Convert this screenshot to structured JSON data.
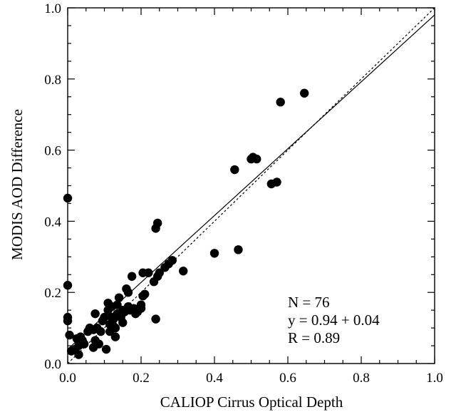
{
  "chart_data": {
    "type": "scatter",
    "title": "",
    "xlabel": "CALIOP Cirrus Optical Depth",
    "ylabel": "MODIS AOD Difference",
    "xlim": [
      0.0,
      1.0
    ],
    "ylim": [
      0.0,
      1.0
    ],
    "xticks": [
      "0.0",
      "0.2",
      "0.4",
      "0.6",
      "0.8",
      "1.0"
    ],
    "yticks": [
      "0.0",
      "0.2",
      "0.4",
      "0.6",
      "0.8",
      "1.0"
    ],
    "grid": false,
    "legend": "none",
    "marker_color": "#000000",
    "annotations": {
      "n": "N = 76",
      "fit": "y = 0.94 + 0.04",
      "r": "R = 0.89"
    },
    "lines": [
      {
        "kind": "regression",
        "style": "solid",
        "x": [
          0.0,
          1.0
        ],
        "y": [
          0.04,
          0.98
        ]
      },
      {
        "kind": "one-to-one",
        "style": "dotted",
        "x": [
          0.0,
          1.0
        ],
        "y": [
          0.0,
          1.0
        ]
      }
    ],
    "points": [
      [
        0.0,
        0.465
      ],
      [
        0.0,
        0.22
      ],
      [
        0.0,
        0.13
      ],
      [
        0.0,
        0.12
      ],
      [
        0.005,
        0.08
      ],
      [
        0.01,
        0.035
      ],
      [
        0.02,
        0.04
      ],
      [
        0.025,
        0.07
      ],
      [
        0.03,
        0.05
      ],
      [
        0.03,
        0.025
      ],
      [
        0.035,
        0.075
      ],
      [
        0.04,
        0.065
      ],
      [
        0.045,
        0.055
      ],
      [
        0.06,
        0.1
      ],
      [
        0.07,
        0.095
      ],
      [
        0.07,
        0.045
      ],
      [
        0.075,
        0.14
      ],
      [
        0.075,
        0.065
      ],
      [
        0.08,
        0.1
      ],
      [
        0.09,
        0.09
      ],
      [
        0.1,
        0.13
      ],
      [
        0.105,
        0.04
      ],
      [
        0.11,
        0.17
      ],
      [
        0.11,
        0.15
      ],
      [
        0.115,
        0.09
      ],
      [
        0.12,
        0.16
      ],
      [
        0.12,
        0.13
      ],
      [
        0.125,
        0.125
      ],
      [
        0.13,
        0.1
      ],
      [
        0.13,
        0.075
      ],
      [
        0.135,
        0.14
      ],
      [
        0.14,
        0.185
      ],
      [
        0.145,
        0.13
      ],
      [
        0.15,
        0.15
      ],
      [
        0.155,
        0.145
      ],
      [
        0.16,
        0.21
      ],
      [
        0.165,
        0.2
      ],
      [
        0.165,
        0.16
      ],
      [
        0.17,
        0.15
      ],
      [
        0.175,
        0.245
      ],
      [
        0.18,
        0.155
      ],
      [
        0.185,
        0.14
      ],
      [
        0.19,
        0.145
      ],
      [
        0.2,
        0.165
      ],
      [
        0.2,
        0.155
      ],
      [
        0.205,
        0.19
      ],
      [
        0.21,
        0.195
      ],
      [
        0.205,
        0.255
      ],
      [
        0.22,
        0.255
      ],
      [
        0.24,
        0.38
      ],
      [
        0.245,
        0.395
      ],
      [
        0.235,
        0.23
      ],
      [
        0.24,
        0.125
      ],
      [
        0.245,
        0.245
      ],
      [
        0.25,
        0.255
      ],
      [
        0.265,
        0.27
      ],
      [
        0.275,
        0.28
      ],
      [
        0.285,
        0.29
      ],
      [
        0.315,
        0.26
      ],
      [
        0.4,
        0.31
      ],
      [
        0.465,
        0.32
      ],
      [
        0.455,
        0.545
      ],
      [
        0.5,
        0.575
      ],
      [
        0.505,
        0.58
      ],
      [
        0.515,
        0.575
      ],
      [
        0.555,
        0.505
      ],
      [
        0.57,
        0.51
      ],
      [
        0.58,
        0.735
      ],
      [
        0.645,
        0.76
      ],
      [
        0.095,
        0.12
      ],
      [
        0.115,
        0.11
      ],
      [
        0.15,
        0.115
      ],
      [
        0.135,
        0.165
      ],
      [
        0.055,
        0.09
      ],
      [
        0.085,
        0.055
      ],
      [
        0.125,
        0.105
      ]
    ]
  }
}
